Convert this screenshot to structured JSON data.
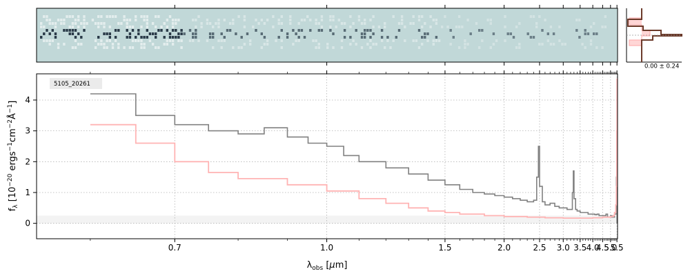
{
  "chart_data": {
    "type": "line",
    "annotation": "5105_20261",
    "xlabel": "λ_obs [μm]",
    "ylabel": "f_λ [10^-20 ergs^-1cm^-2Å^-1]",
    "x_scale": "reciprocal",
    "xlim": [
      0.55,
      5.55
    ],
    "ylim": [
      -0.5,
      4.85
    ],
    "x_ticks": [
      0.7,
      1.0,
      1.5,
      2.0,
      2.5,
      3.0,
      3.5,
      4.0,
      4.5,
      5.0,
      5.5
    ],
    "x_tick_labels": [
      "0.7",
      "1.0",
      "1.5",
      "2.0",
      "2.5",
      "3.0",
      "3.5",
      "4.0",
      "4.5",
      "5.0",
      "5.5"
    ],
    "y_ticks": [
      0,
      1,
      2,
      3,
      4
    ],
    "y_tick_labels": [
      "0",
      "1",
      "2",
      "3",
      "4"
    ],
    "grid": true,
    "series": [
      {
        "color": "#808080",
        "style": "steps",
        "x": [
          0.6,
          0.65,
          0.7,
          0.75,
          0.8,
          0.85,
          0.9,
          0.95,
          1.0,
          1.05,
          1.1,
          1.2,
          1.3,
          1.4,
          1.5,
          1.6,
          1.7,
          1.8,
          1.9,
          2.0,
          2.1,
          2.2,
          2.3,
          2.4,
          2.45,
          2.48,
          2.5,
          2.55,
          2.6,
          2.7,
          2.8,
          2.9,
          3.0,
          3.1,
          3.2,
          3.25,
          3.28,
          3.3,
          3.35,
          3.4,
          3.5,
          3.6,
          3.7,
          3.8,
          3.9,
          4.0,
          4.1,
          4.2,
          4.3,
          4.4,
          4.5,
          4.6,
          4.7,
          4.8,
          4.9,
          5.0,
          5.1,
          5.2,
          5.3,
          5.4,
          5.45,
          5.48,
          5.5
        ],
        "y": [
          4.2,
          3.5,
          3.2,
          3.0,
          2.9,
          3.1,
          2.8,
          2.6,
          2.5,
          2.2,
          2.0,
          1.8,
          1.6,
          1.4,
          1.25,
          1.1,
          1.0,
          0.95,
          0.9,
          0.85,
          0.8,
          0.75,
          0.7,
          0.75,
          1.5,
          2.5,
          1.2,
          0.7,
          0.6,
          0.65,
          0.55,
          0.5,
          0.5,
          0.45,
          0.45,
          1.0,
          1.7,
          0.8,
          0.45,
          0.4,
          0.35,
          0.35,
          0.35,
          0.3,
          0.3,
          0.3,
          0.28,
          0.3,
          0.25,
          0.25,
          0.25,
          0.25,
          0.3,
          0.2,
          0.2,
          0.25,
          0.2,
          0.2,
          0.3,
          0.3,
          1.5,
          2.1,
          0.0
        ]
      },
      {
        "color": "#ffb3b3",
        "style": "steps",
        "x": [
          0.6,
          0.65,
          0.7,
          0.75,
          0.8,
          0.9,
          1.0,
          1.1,
          1.2,
          1.3,
          1.4,
          1.5,
          1.6,
          1.8,
          2.0,
          2.3,
          2.6,
          3.0,
          3.5,
          4.0,
          4.5,
          5.0,
          5.2,
          5.3,
          5.4,
          5.45,
          5.48,
          5.5
        ],
        "y": [
          3.2,
          2.6,
          2.0,
          1.65,
          1.45,
          1.25,
          1.05,
          0.8,
          0.65,
          0.5,
          0.4,
          0.35,
          0.3,
          0.25,
          0.22,
          0.2,
          0.18,
          0.17,
          0.17,
          0.18,
          0.2,
          0.22,
          0.25,
          0.35,
          0.6,
          1.2,
          3.0,
          4.7
        ]
      }
    ],
    "inset": {
      "label": "0.00 ± 0.24"
    }
  }
}
